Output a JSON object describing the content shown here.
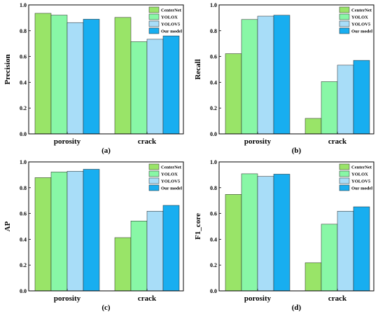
{
  "colors": {
    "CenterNet": "#99e468",
    "YOLOX": "#88f7a6",
    "YOLOV5": "#a8ddf8",
    "Our model": "#18aef0"
  },
  "chart_data": [
    {
      "type": "bar",
      "panel_label": "(a)",
      "ylabel": "Precision",
      "categories": [
        "porosity",
        "crack"
      ],
      "ylim": [
        0,
        1.0
      ],
      "yticks": [
        "0.0",
        "0.2",
        "0.4",
        "0.6",
        "0.8",
        "1.0"
      ],
      "legend": "top-right",
      "series": [
        {
          "name": "CenterNet",
          "values": [
            0.935,
            0.903
          ]
        },
        {
          "name": "YOLOX",
          "values": [
            0.921,
            0.715
          ]
        },
        {
          "name": "YOLOV5",
          "values": [
            0.863,
            0.734
          ]
        },
        {
          "name": "Our model",
          "values": [
            0.889,
            0.76
          ]
        }
      ]
    },
    {
      "type": "bar",
      "panel_label": "(b)",
      "ylabel": "Recall",
      "categories": [
        "porosity",
        "crack"
      ],
      "ylim": [
        0,
        1.0
      ],
      "yticks": [
        "0.0",
        "0.2",
        "0.4",
        "0.6",
        "0.8",
        "1.0"
      ],
      "legend": "top-right",
      "series": [
        {
          "name": "CenterNet",
          "values": [
            0.622,
            0.12
          ]
        },
        {
          "name": "YOLOX",
          "values": [
            0.887,
            0.405
          ]
        },
        {
          "name": "YOLOV5",
          "values": [
            0.913,
            0.533
          ]
        },
        {
          "name": "Our model",
          "values": [
            0.92,
            0.57
          ]
        }
      ]
    },
    {
      "type": "bar",
      "panel_label": "(c)",
      "ylabel": "AP",
      "categories": [
        "porosity",
        "crack"
      ],
      "ylim": [
        0,
        1.0
      ],
      "yticks": [
        "0.0",
        "0.2",
        "0.4",
        "0.6",
        "0.8",
        "1.0"
      ],
      "legend": "top-right",
      "series": [
        {
          "name": "CenterNet",
          "values": [
            0.878,
            0.413
          ]
        },
        {
          "name": "YOLOX",
          "values": [
            0.922,
            0.542
          ]
        },
        {
          "name": "YOLOV5",
          "values": [
            0.928,
            0.618
          ]
        },
        {
          "name": "Our model",
          "values": [
            0.943,
            0.663
          ]
        }
      ]
    },
    {
      "type": "bar",
      "panel_label": "(d)",
      "ylabel": "F1_core",
      "categories": [
        "porosity",
        "crack"
      ],
      "ylim": [
        0,
        1.0
      ],
      "yticks": [
        "0.0",
        "0.2",
        "0.4",
        "0.6",
        "0.8",
        "1.0"
      ],
      "legend": "top-right",
      "series": [
        {
          "name": "CenterNet",
          "values": [
            0.748,
            0.218
          ]
        },
        {
          "name": "YOLOX",
          "values": [
            0.908,
            0.517
          ]
        },
        {
          "name": "YOLOV5",
          "values": [
            0.888,
            0.618
          ]
        },
        {
          "name": "Our model",
          "values": [
            0.905,
            0.652
          ]
        }
      ]
    }
  ]
}
